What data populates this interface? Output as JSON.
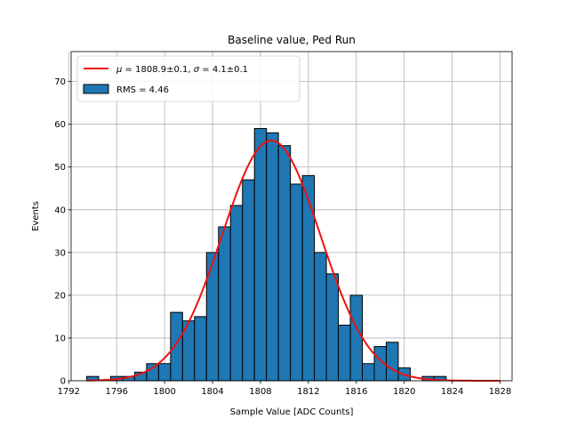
{
  "chart_data": {
    "type": "histogram",
    "title": "Baseline value, Ped Run",
    "xlabel": "Sample Value [ADC Counts]",
    "ylabel": "Events",
    "xlim": [
      1792.2,
      1829.0
    ],
    "ylim": [
      0,
      77
    ],
    "grid": true,
    "x_ticks": [
      1792,
      1796,
      1800,
      1804,
      1808,
      1812,
      1816,
      1820,
      1824,
      1828
    ],
    "y_ticks": [
      0,
      10,
      20,
      30,
      40,
      50,
      60,
      70
    ],
    "bin_width": 1,
    "bins": [
      {
        "x0": 1793.5,
        "count": 1
      },
      {
        "x0": 1794.5,
        "count": 0
      },
      {
        "x0": 1795.5,
        "count": 1
      },
      {
        "x0": 1796.5,
        "count": 1
      },
      {
        "x0": 1797.5,
        "count": 2
      },
      {
        "x0": 1798.5,
        "count": 4
      },
      {
        "x0": 1799.5,
        "count": 4
      },
      {
        "x0": 1800.5,
        "count": 16
      },
      {
        "x0": 1801.5,
        "count": 14
      },
      {
        "x0": 1802.5,
        "count": 15
      },
      {
        "x0": 1803.5,
        "count": 30
      },
      {
        "x0": 1804.5,
        "count": 36
      },
      {
        "x0": 1805.5,
        "count": 41
      },
      {
        "x0": 1806.5,
        "count": 47
      },
      {
        "x0": 1807.5,
        "count": 59
      },
      {
        "x0": 1808.5,
        "count": 58
      },
      {
        "x0": 1809.5,
        "count": 55
      },
      {
        "x0": 1810.5,
        "count": 46
      },
      {
        "x0": 1811.5,
        "count": 48
      },
      {
        "x0": 1812.5,
        "count": 30
      },
      {
        "x0": 1813.5,
        "count": 25
      },
      {
        "x0": 1814.5,
        "count": 13
      },
      {
        "x0": 1815.5,
        "count": 20
      },
      {
        "x0": 1816.5,
        "count": 4
      },
      {
        "x0": 1817.5,
        "count": 8
      },
      {
        "x0": 1818.5,
        "count": 9
      },
      {
        "x0": 1819.5,
        "count": 3
      },
      {
        "x0": 1820.5,
        "count": 0
      },
      {
        "x0": 1821.5,
        "count": 1
      },
      {
        "x0": 1822.5,
        "count": 1
      }
    ],
    "fit": {
      "type": "gaussian",
      "mu": 1808.9,
      "sigma": 4.1,
      "amplitude": 56.2,
      "x_range": [
        1793.5,
        1828
      ],
      "color": "#ee1111"
    },
    "bar_color": "#1f77b4",
    "edge_color": "#000000",
    "grid_color": "#b0b0b0",
    "legend": {
      "placement": "top-left",
      "fit_label": {
        "mu_symbol": "μ",
        "mu_text": " = 1808.9±0.1, ",
        "sigma_symbol": "σ",
        "sigma_text": " = 4.1±0.1"
      },
      "hist_label": "RMS = 4.46"
    }
  }
}
